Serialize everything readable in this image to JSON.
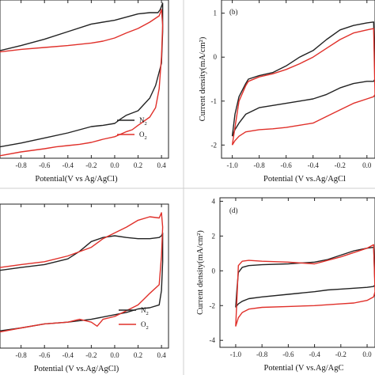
{
  "colors": {
    "n2": "#222222",
    "o2": "#e0302a",
    "axis": "#222222",
    "divider": "#cfcfcf"
  },
  "chart_data": [
    {
      "id": "a",
      "type": "line",
      "panel_label": "",
      "xlabel": "Potential(V vs Ag/AgCl)",
      "ylabel": "",
      "xticks": [
        "-0.8",
        "-0.6",
        "-0.4",
        "-0.2",
        "0.0",
        "0.2",
        "0.4"
      ],
      "yticks": [],
      "xlim": [
        -0.98,
        0.46
      ],
      "ylim": [
        -1.3,
        1.2
      ],
      "legend": {
        "position": "bottom-right",
        "entries": [
          {
            "label": "N",
            "sub": "2",
            "series": "n2"
          },
          {
            "label": "O",
            "sub": "2",
            "series": "o2"
          }
        ]
      },
      "series": [
        {
          "name": "N2",
          "color_key": "n2",
          "x": [
            -0.98,
            -0.8,
            -0.6,
            -0.4,
            -0.2,
            0.0,
            0.1,
            0.2,
            0.3,
            0.37,
            0.39,
            0.4,
            0.41,
            0.41,
            0.4,
            0.35,
            0.3,
            0.25,
            0.2,
            0.1,
            0.05,
            0.0,
            -0.1,
            -0.2,
            -0.3,
            -0.4,
            -0.6,
            -0.8,
            -0.98
          ],
          "y": [
            0.4,
            0.48,
            0.58,
            0.7,
            0.82,
            0.88,
            0.93,
            0.98,
            1.0,
            1.0,
            1.05,
            1.1,
            1.15,
            0.7,
            0.2,
            -0.15,
            -0.35,
            -0.45,
            -0.55,
            -0.62,
            -0.68,
            -0.75,
            -0.78,
            -0.8,
            -0.85,
            -0.9,
            -0.98,
            -1.06,
            -1.12
          ]
        },
        {
          "name": "O2",
          "color_key": "o2",
          "x": [
            -0.98,
            -0.8,
            -0.6,
            -0.4,
            -0.2,
            -0.1,
            0.0,
            0.1,
            0.2,
            0.3,
            0.38,
            0.4,
            0.41,
            0.4,
            0.38,
            0.35,
            0.3,
            0.2,
            0.15,
            0.1,
            0.05,
            0.0,
            -0.1,
            -0.2,
            -0.3,
            -0.4,
            -0.5,
            -0.6,
            -0.8,
            -0.98
          ],
          "y": [
            0.38,
            0.42,
            0.45,
            0.48,
            0.52,
            0.55,
            0.6,
            0.68,
            0.75,
            0.85,
            0.95,
            1.05,
            0.8,
            0.3,
            -0.2,
            -0.5,
            -0.65,
            -0.78,
            -0.85,
            -0.88,
            -0.92,
            -0.96,
            -1.0,
            -1.05,
            -1.08,
            -1.1,
            -1.12,
            -1.15,
            -1.2,
            -1.26
          ]
        }
      ]
    },
    {
      "id": "b",
      "type": "line",
      "panel_label": "(b)",
      "xlabel": "Potential (V vs.Ag/AgCl",
      "ylabel": "Current density(mA/cm²)",
      "xticks": [
        "-1.0",
        "-0.8",
        "-0.6",
        "-0.4",
        "-0.2",
        "0.0"
      ],
      "yticks": [
        "1",
        "0",
        "-1",
        "-2"
      ],
      "xlim": [
        -1.08,
        0.06
      ],
      "ylim": [
        -2.3,
        1.3
      ],
      "legend": null,
      "series": [
        {
          "name": "N2",
          "color_key": "n2",
          "x": [
            -1.0,
            -0.98,
            -0.95,
            -0.9,
            -0.88,
            -0.8,
            -0.7,
            -0.6,
            -0.5,
            -0.4,
            -0.3,
            -0.2,
            -0.1,
            0.0,
            0.05,
            0.06,
            0.05,
            0.0,
            -0.1,
            -0.2,
            -0.3,
            -0.4,
            -0.5,
            -0.6,
            -0.7,
            -0.8,
            -0.9,
            -0.95,
            -0.98,
            -1.0
          ],
          "y": [
            -1.8,
            -1.3,
            -0.9,
            -0.6,
            -0.5,
            -0.42,
            -0.35,
            -0.2,
            0.0,
            0.15,
            0.4,
            0.62,
            0.72,
            0.78,
            0.8,
            -0.5,
            -0.55,
            -0.55,
            -0.6,
            -0.7,
            -0.85,
            -0.95,
            -1.0,
            -1.05,
            -1.1,
            -1.15,
            -1.3,
            -1.5,
            -1.65,
            -1.8
          ]
        },
        {
          "name": "O2",
          "color_key": "o2",
          "x": [
            -1.0,
            -0.98,
            -0.95,
            -0.9,
            -0.88,
            -0.8,
            -0.7,
            -0.6,
            -0.5,
            -0.4,
            -0.3,
            -0.2,
            -0.1,
            0.0,
            0.05,
            0.06,
            0.05,
            0.0,
            -0.1,
            -0.2,
            -0.3,
            -0.4,
            -0.5,
            -0.6,
            -0.7,
            -0.8,
            -0.9,
            -0.95,
            -0.98,
            -1.0
          ],
          "y": [
            -2.0,
            -1.6,
            -1.0,
            -0.65,
            -0.55,
            -0.45,
            -0.38,
            -0.28,
            -0.15,
            0.0,
            0.2,
            0.4,
            0.55,
            0.62,
            0.65,
            -0.85,
            -0.9,
            -0.95,
            -1.05,
            -1.2,
            -1.35,
            -1.5,
            -1.55,
            -1.6,
            -1.63,
            -1.65,
            -1.7,
            -1.8,
            -1.9,
            -2.0
          ]
        }
      ]
    },
    {
      "id": "c",
      "type": "line",
      "panel_label": "",
      "xlabel": "Potential (V vs.Ag/AgCl)",
      "ylabel": "",
      "xticks": [
        "-0.8",
        "-0.6",
        "-0.4",
        "-0.2",
        "0.0",
        "0.2",
        "0.4"
      ],
      "yticks": [],
      "xlim": [
        -0.98,
        0.46
      ],
      "ylim": [
        -1.3,
        1.2
      ],
      "legend": {
        "position": "bottom-right",
        "entries": [
          {
            "label": "N",
            "sub": "2",
            "series": "n2"
          },
          {
            "label": "O",
            "sub": "2",
            "series": "o2"
          }
        ]
      },
      "series": [
        {
          "name": "N2",
          "color_key": "n2",
          "x": [
            -0.98,
            -0.8,
            -0.6,
            -0.4,
            -0.3,
            -0.2,
            -0.1,
            0.0,
            0.1,
            0.2,
            0.3,
            0.38,
            0.4,
            0.41,
            0.41,
            0.4,
            0.38,
            0.3,
            0.2,
            0.1,
            0.0,
            -0.2,
            -0.4,
            -0.6,
            -0.8,
            -0.98
          ],
          "y": [
            0.05,
            0.1,
            0.15,
            0.25,
            0.38,
            0.55,
            0.62,
            0.65,
            0.62,
            0.6,
            0.6,
            0.62,
            0.65,
            0.7,
            0.2,
            -0.3,
            -0.55,
            -0.6,
            -0.62,
            -0.68,
            -0.72,
            -0.8,
            -0.85,
            -0.88,
            -0.95,
            -1.0
          ]
        },
        {
          "name": "O2",
          "color_key": "o2",
          "x": [
            -0.98,
            -0.8,
            -0.6,
            -0.4,
            -0.2,
            -0.1,
            0.0,
            0.1,
            0.2,
            0.3,
            0.38,
            0.4,
            0.41,
            0.4,
            0.38,
            0.3,
            0.25,
            0.2,
            0.1,
            0.0,
            -0.1,
            -0.15,
            -0.2,
            -0.3,
            -0.4,
            -0.6,
            -0.8,
            -0.98
          ],
          "y": [
            0.1,
            0.15,
            0.2,
            0.3,
            0.45,
            0.6,
            0.7,
            0.8,
            0.92,
            0.98,
            0.96,
            1.05,
            0.8,
            0.3,
            -0.2,
            -0.35,
            -0.45,
            -0.55,
            -0.65,
            -0.75,
            -0.8,
            -0.92,
            -0.85,
            -0.8,
            -0.85,
            -0.88,
            -0.95,
            -1.02
          ]
        }
      ]
    },
    {
      "id": "d",
      "type": "line",
      "panel_label": "(d)",
      "xlabel": "Potential (V vs.Ag/AgC",
      "ylabel": "Current density(mA/cm²)",
      "xticks": [
        "-1.0",
        "-0.8",
        "-0.6",
        "-0.4",
        "-0.2",
        "0.0"
      ],
      "yticks": [
        "4",
        "2",
        "0",
        "-2",
        "-4"
      ],
      "xlim": [
        -1.12,
        0.06
      ],
      "ylim": [
        -4.4,
        4.2
      ],
      "legend": null,
      "series": [
        {
          "name": "N2",
          "color_key": "n2",
          "x": [
            -1.0,
            -0.99,
            -0.98,
            -0.95,
            -0.9,
            -0.8,
            -0.6,
            -0.4,
            -0.3,
            -0.2,
            -0.1,
            0.0,
            0.05,
            0.06,
            0.05,
            0.0,
            -0.1,
            -0.2,
            -0.3,
            -0.4,
            -0.6,
            -0.8,
            -0.9,
            -0.95,
            -0.98,
            -1.0
          ],
          "y": [
            -2.1,
            -1.0,
            -0.1,
            0.2,
            0.3,
            0.35,
            0.4,
            0.5,
            0.65,
            0.9,
            1.15,
            1.3,
            1.35,
            -0.8,
            -0.9,
            -0.95,
            -1.0,
            -1.05,
            -1.1,
            -1.2,
            -1.35,
            -1.5,
            -1.6,
            -1.75,
            -1.9,
            -2.1
          ]
        },
        {
          "name": "O2",
          "color_key": "o2",
          "x": [
            -1.0,
            -0.99,
            -0.98,
            -0.95,
            -0.9,
            -0.8,
            -0.6,
            -0.5,
            -0.4,
            -0.35,
            -0.3,
            -0.2,
            -0.1,
            0.0,
            0.05,
            0.06,
            0.05,
            0.0,
            -0.1,
            -0.2,
            -0.3,
            -0.4,
            -0.6,
            -0.8,
            -0.9,
            -0.95,
            -0.98,
            -1.0
          ],
          "y": [
            -3.2,
            -1.5,
            0.3,
            0.55,
            0.6,
            0.55,
            0.5,
            0.45,
            0.4,
            0.5,
            0.6,
            0.8,
            1.05,
            1.3,
            1.5,
            -1.2,
            -1.5,
            -1.7,
            -1.85,
            -1.9,
            -1.95,
            -2.0,
            -2.05,
            -2.1,
            -2.2,
            -2.4,
            -2.7,
            -3.2
          ]
        }
      ]
    }
  ]
}
